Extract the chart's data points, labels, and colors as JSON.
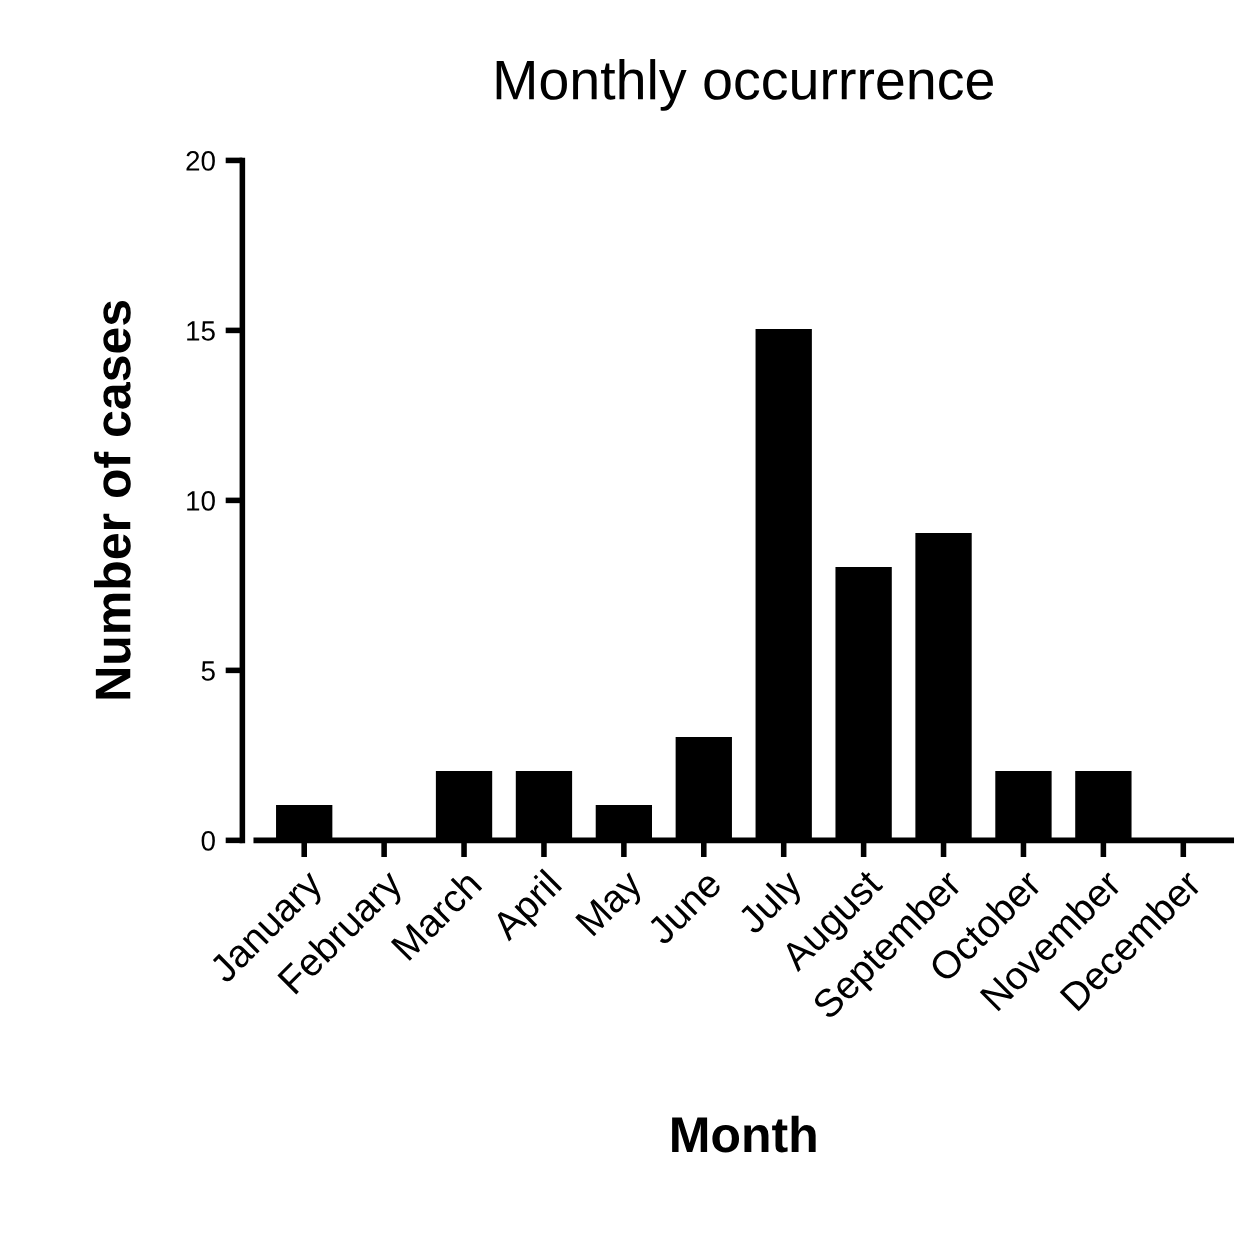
{
  "chart_data": {
    "type": "bar",
    "title": "Monthly occurrrence",
    "xlabel": "Month",
    "ylabel": "Number of cases",
    "categories": [
      "January",
      "February",
      "March",
      "April",
      "May",
      "June",
      "July",
      "August",
      "September",
      "October",
      "November",
      "December"
    ],
    "values": [
      1,
      0,
      2,
      2,
      1,
      3,
      15,
      8,
      9,
      2,
      2,
      0
    ],
    "color": "#000000",
    "ylim": [
      0,
      20
    ],
    "yticks": [
      0,
      5,
      10,
      15,
      20
    ],
    "grid": false,
    "legend": false
  }
}
